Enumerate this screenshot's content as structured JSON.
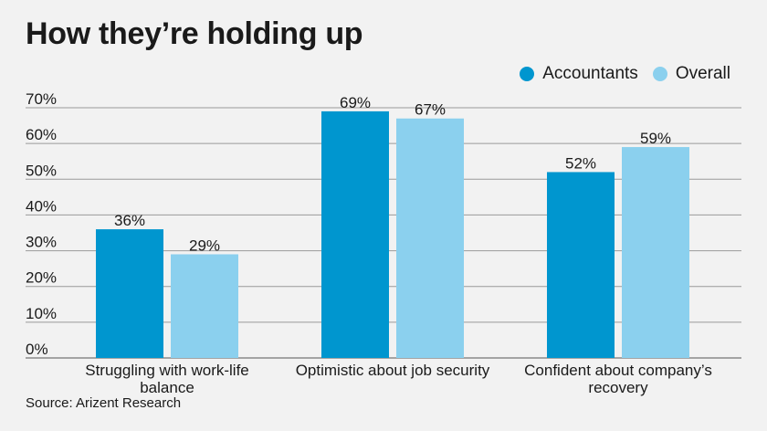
{
  "title": "How they’re holding up",
  "source": "Source: Arizent Research",
  "chart_data": {
    "type": "bar",
    "title": "How they’re holding up",
    "xlabel": "",
    "ylabel": "",
    "ylim": [
      0,
      70
    ],
    "yticks": [
      0,
      10,
      20,
      30,
      40,
      50,
      60,
      70
    ],
    "ytick_labels": [
      "0%",
      "10%",
      "20%",
      "30%",
      "40%",
      "50%",
      "60%",
      "70%"
    ],
    "grid": true,
    "legend_position": "top-right",
    "categories": [
      [
        "Struggling with work-life",
        "balance"
      ],
      [
        "Optimistic about job security"
      ],
      [
        "Confident about company’s",
        "recovery"
      ]
    ],
    "series": [
      {
        "name": "Accountants",
        "color": "#0096cf",
        "values": [
          36,
          69,
          52
        ],
        "labels": [
          "36%",
          "69%",
          "52%"
        ]
      },
      {
        "name": "Overall",
        "color": "#8bd0ee",
        "values": [
          29,
          67,
          59
        ],
        "labels": [
          "29%",
          "67%",
          "59%"
        ]
      }
    ]
  }
}
